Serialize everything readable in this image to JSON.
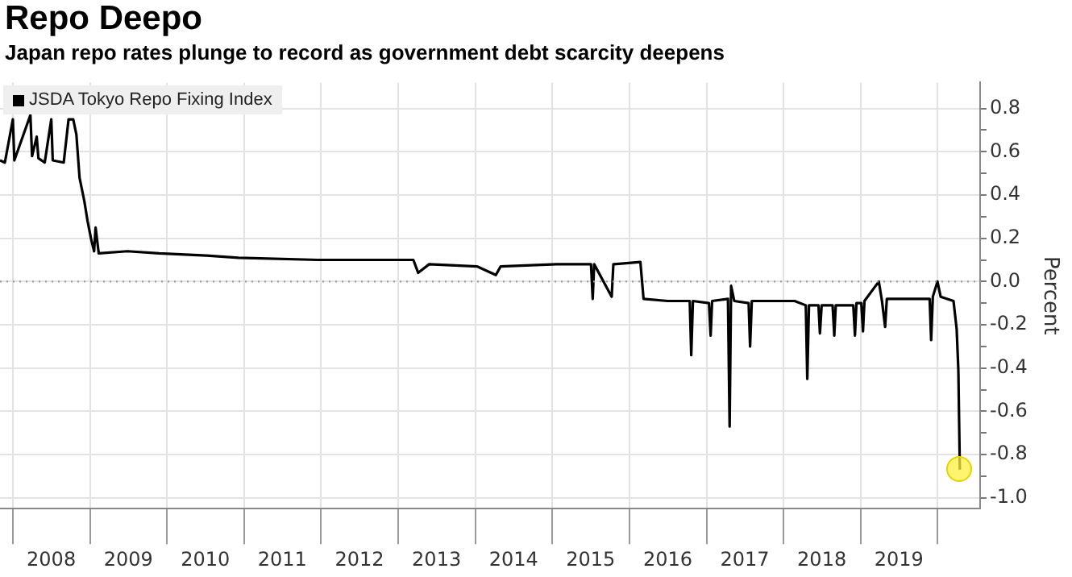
{
  "chart_data": {
    "type": "line",
    "title": "Repo Deepo",
    "subtitle": "Japan repo rates plunge to record as government debt scarcity deepens",
    "ylabel": "Percent",
    "x": [
      "2007-11-01",
      "2007-11-24",
      "2008-01-01",
      "2008-01-08",
      "2008-03-24",
      "2008-04-01",
      "2008-04-23",
      "2008-05-01",
      "2008-05-31",
      "2008-07-01",
      "2008-07-08",
      "2008-08-29",
      "2008-09-21",
      "2008-10-13",
      "2008-10-28",
      "2008-11-12",
      "2008-12-05",
      "2008-12-20",
      "2009-01-05",
      "2009-01-20",
      "2009-01-27",
      "2009-02-11",
      "2009-06-27",
      "2009-11-24",
      "2010-07-07",
      "2010-12-05",
      "2011-12-16",
      "2013-03-13",
      "2013-04-05",
      "2013-05-27",
      "2014-01-08",
      "2014-04-08",
      "2014-05-01",
      "2015-01-20",
      "2015-07-03",
      "2015-07-11",
      "2015-07-18",
      "2015-10-09",
      "2015-10-17",
      "2016-02-22",
      "2016-03-08",
      "2016-06-30",
      "2016-10-13",
      "2016-10-20",
      "2016-10-28",
      "2017-01-12",
      "2017-01-20",
      "2017-01-27",
      "2017-04-12",
      "2017-04-20",
      "2017-04-27",
      "2017-05-12",
      "2017-07-19",
      "2017-07-26",
      "2017-08-03",
      "2018-02-22",
      "2018-04-16",
      "2018-04-23",
      "2018-05-01",
      "2018-06-15",
      "2018-06-22",
      "2018-06-30",
      "2018-08-21",
      "2018-08-29",
      "2018-09-05",
      "2018-11-27",
      "2018-12-05",
      "2018-12-12",
      "2019-01-04",
      "2019-01-12",
      "2019-01-19",
      "2019-03-28",
      "2019-04-12",
      "2019-04-27",
      "2019-05-05",
      "2019-08-03",
      "2019-11-24",
      "2019-12-01",
      "2019-12-09",
      "2019-12-31",
      "2020-01-15",
      "2020-03-16",
      "2020-03-31",
      "2020-04-08",
      "2020-04-15"
    ],
    "series": [
      {
        "name": "JSDA Tokyo Repo Fixing Index",
        "color": "#000000",
        "values": [
          0.56,
          0.55,
          0.75,
          0.56,
          0.77,
          0.58,
          0.67,
          0.57,
          0.55,
          0.75,
          0.56,
          0.55,
          0.75,
          0.75,
          0.68,
          0.48,
          0.37,
          0.28,
          0.2,
          0.14,
          0.25,
          0.13,
          0.14,
          0.13,
          0.12,
          0.11,
          0.1,
          0.1,
          0.04,
          0.08,
          0.07,
          0.03,
          0.07,
          0.08,
          0.08,
          -0.08,
          0.08,
          -0.07,
          0.08,
          0.09,
          -0.08,
          -0.09,
          -0.09,
          -0.34,
          -0.09,
          -0.1,
          -0.25,
          -0.09,
          -0.08,
          -0.67,
          -0.02,
          -0.09,
          -0.1,
          -0.3,
          -0.09,
          -0.09,
          -0.11,
          -0.45,
          -0.11,
          -0.11,
          -0.24,
          -0.11,
          -0.11,
          -0.25,
          -0.11,
          -0.11,
          -0.25,
          -0.1,
          -0.1,
          -0.23,
          -0.09,
          0.0,
          -0.09,
          -0.21,
          -0.08,
          -0.08,
          -0.08,
          -0.27,
          -0.07,
          0.0,
          -0.07,
          -0.09,
          -0.22,
          -0.41,
          -0.87
        ]
      }
    ],
    "xlim": [
      "2007-11-01",
      "2020-07-20"
    ],
    "xticks": [
      {
        "value": "2008-01-01",
        "label": null
      },
      {
        "value": "2008-07-01",
        "label": "2008"
      },
      {
        "value": "2009-01-01",
        "label": null
      },
      {
        "value": "2009-07-01",
        "label": "2009"
      },
      {
        "value": "2010-01-01",
        "label": null
      },
      {
        "value": "2010-07-01",
        "label": "2010"
      },
      {
        "value": "2011-01-01",
        "label": null
      },
      {
        "value": "2011-07-01",
        "label": "2011"
      },
      {
        "value": "2012-01-01",
        "label": null
      },
      {
        "value": "2012-07-01",
        "label": "2012"
      },
      {
        "value": "2013-01-01",
        "label": null
      },
      {
        "value": "2013-07-01",
        "label": "2013"
      },
      {
        "value": "2014-01-01",
        "label": null
      },
      {
        "value": "2014-07-01",
        "label": "2014"
      },
      {
        "value": "2015-01-01",
        "label": null
      },
      {
        "value": "2015-07-01",
        "label": "2015"
      },
      {
        "value": "2016-01-01",
        "label": null
      },
      {
        "value": "2016-07-01",
        "label": "2016"
      },
      {
        "value": "2017-01-01",
        "label": null
      },
      {
        "value": "2017-07-01",
        "label": "2017"
      },
      {
        "value": "2018-01-01",
        "label": null
      },
      {
        "value": "2018-07-01",
        "label": "2018"
      },
      {
        "value": "2019-01-01",
        "label": null
      },
      {
        "value": "2019-07-01",
        "label": "2019"
      },
      {
        "value": "2020-01-01",
        "label": null
      }
    ],
    "ylim": [
      -1.05,
      0.92
    ],
    "yticks": [
      0.8,
      {
        "value": 0.7,
        "label": null
      },
      0.6,
      {
        "value": 0.5,
        "label": null
      },
      0.4,
      {
        "value": 0.3,
        "label": null
      },
      0.2,
      {
        "value": 0.1,
        "label": null
      },
      {
        "value": 0,
        "label": "0.0"
      },
      {
        "value": -0.1,
        "label": null
      },
      -0.2,
      {
        "value": -0.3,
        "label": null
      },
      -0.4,
      {
        "value": -0.5,
        "label": null
      },
      -0.6,
      {
        "value": -0.7,
        "label": null
      },
      -0.8,
      {
        "value": -0.9,
        "label": null
      },
      {
        "value": -1,
        "label": "-1.0"
      }
    ],
    "ref_lines": [
      {
        "axis": "y",
        "value": 0,
        "label": null,
        "color": "#9a9a9a",
        "line_style": "dotted"
      }
    ],
    "grid": true,
    "legend": "top left",
    "marker": "none",
    "line_style": "solid"
  }
}
